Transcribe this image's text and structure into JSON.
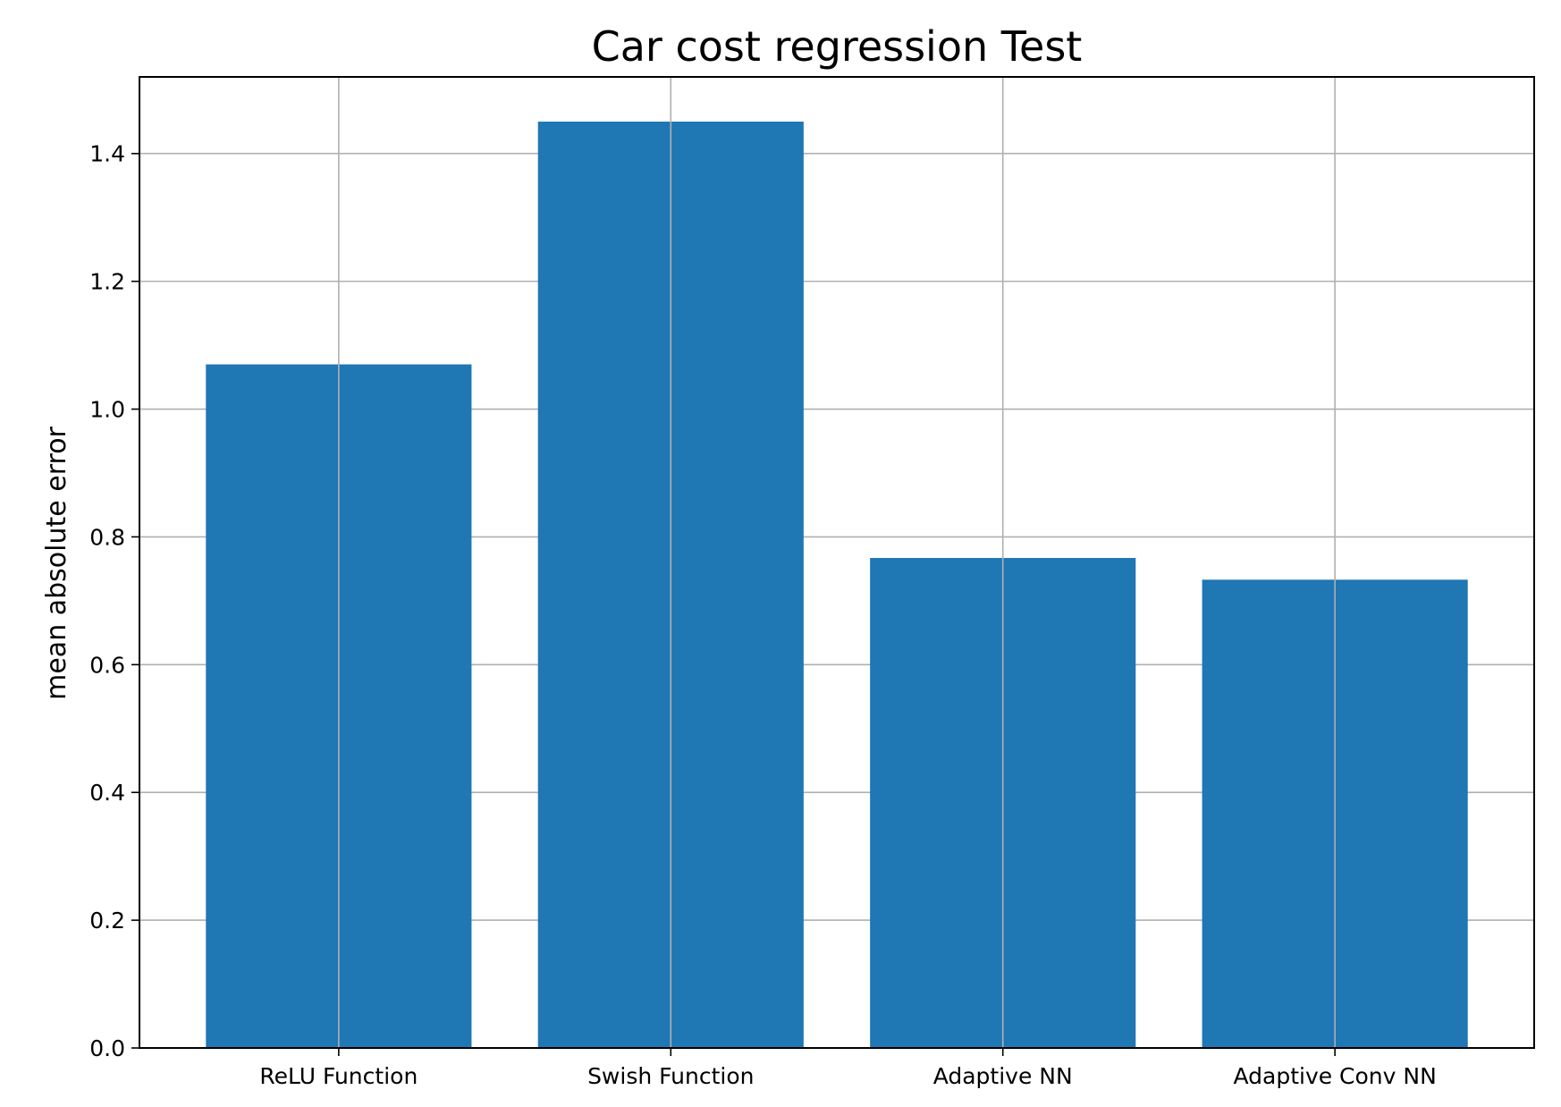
{
  "chart_data": {
    "type": "bar",
    "title": "Car cost regression Test",
    "xlabel": "",
    "ylabel": "mean absolute error",
    "categories": [
      "ReLU Function",
      "Swish Function",
      "Adaptive NN",
      "Adaptive Conv NN"
    ],
    "values": [
      1.07,
      1.45,
      0.767,
      0.733
    ],
    "ylim": [
      0,
      1.52
    ],
    "yticks": [
      0.0,
      0.2,
      0.4,
      0.6,
      0.8,
      1.0,
      1.2,
      1.4
    ],
    "ytick_labels": [
      "0.0",
      "0.2",
      "0.4",
      "0.6",
      "0.8",
      "1.0",
      "1.2",
      "1.4"
    ],
    "grid": true,
    "legend": "none",
    "colors": {
      "bar": "#1f77b4",
      "grid": "#b0b0b0",
      "axis": "#000000"
    }
  }
}
